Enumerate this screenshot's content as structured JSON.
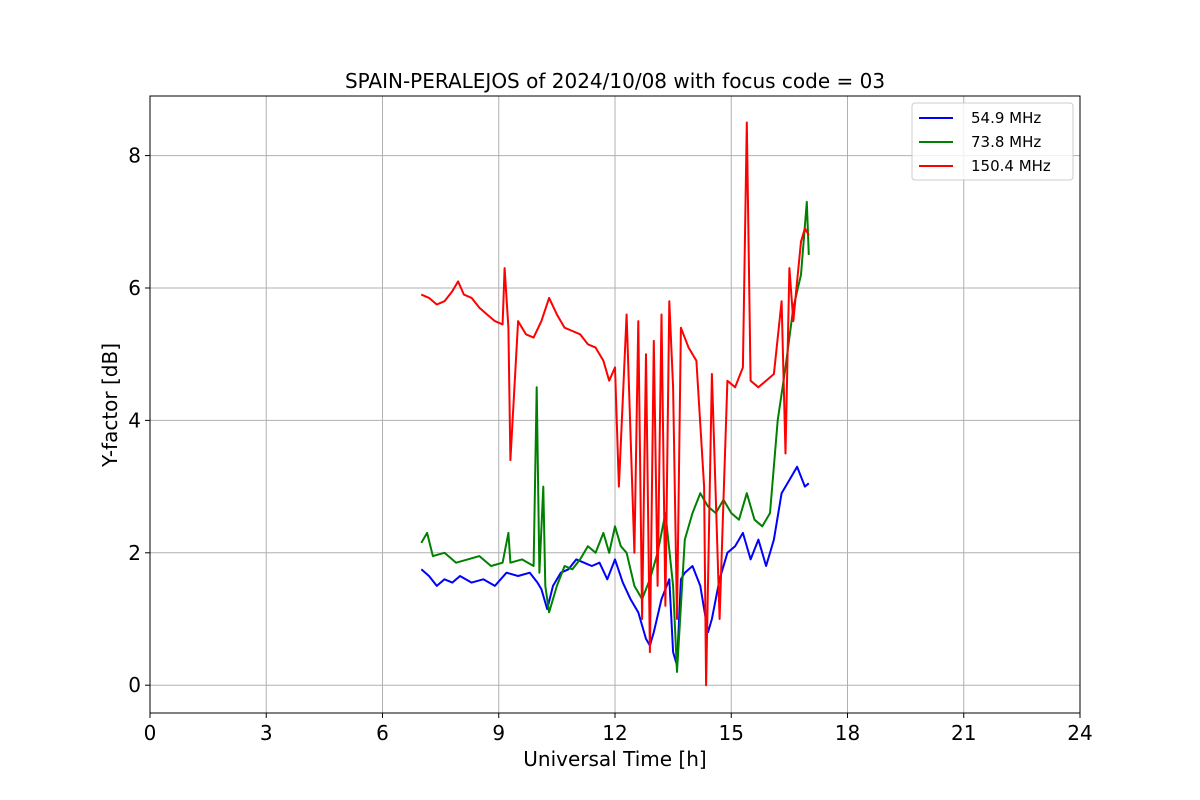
{
  "chart_data": {
    "type": "line",
    "title": "SPAIN-PERALEJOS of 2024/10/08 with focus code = 03",
    "xlabel": "Universal Time [h]",
    "ylabel": "Y-factor [dB]",
    "xlim": [
      0,
      24
    ],
    "ylim": [
      -0.42,
      8.9
    ],
    "xticks": [
      0,
      3,
      6,
      9,
      12,
      15,
      18,
      21,
      24
    ],
    "yticks": [
      0,
      2,
      4,
      6,
      8
    ],
    "xtick_labels": [
      "0",
      "3",
      "6",
      "9",
      "12",
      "15",
      "18",
      "21",
      "24"
    ],
    "ytick_labels": [
      "0",
      "2",
      "4",
      "6",
      "8"
    ],
    "grid": true,
    "legend_position": "top-right",
    "series": [
      {
        "name": "54.9 MHz",
        "color": "#0000ff",
        "x": [
          7.0,
          7.2,
          7.4,
          7.6,
          7.8,
          8.0,
          8.3,
          8.6,
          8.9,
          9.2,
          9.5,
          9.8,
          10.0,
          10.1,
          10.25,
          10.4,
          10.6,
          10.8,
          11.0,
          11.2,
          11.4,
          11.6,
          11.8,
          12.0,
          12.2,
          12.4,
          12.6,
          12.8,
          12.9,
          13.0,
          13.2,
          13.4,
          13.5,
          13.6,
          13.7,
          13.8,
          14.0,
          14.2,
          14.4,
          14.5,
          14.7,
          14.9,
          15.1,
          15.3,
          15.5,
          15.7,
          15.9,
          16.1,
          16.3,
          16.5,
          16.7,
          16.9,
          17.0
        ],
        "y": [
          1.75,
          1.65,
          1.5,
          1.6,
          1.55,
          1.65,
          1.55,
          1.6,
          1.5,
          1.7,
          1.65,
          1.7,
          1.55,
          1.45,
          1.15,
          1.5,
          1.7,
          1.75,
          1.9,
          1.85,
          1.8,
          1.85,
          1.6,
          1.9,
          1.55,
          1.3,
          1.1,
          0.7,
          0.6,
          0.8,
          1.3,
          1.6,
          0.5,
          0.3,
          1.6,
          1.7,
          1.8,
          1.5,
          0.8,
          1.0,
          1.6,
          2.0,
          2.1,
          2.3,
          1.9,
          2.2,
          1.8,
          2.2,
          2.9,
          3.1,
          3.3,
          3.0,
          3.05
        ]
      },
      {
        "name": "73.8 MHz",
        "color": "#008000",
        "x": [
          7.0,
          7.15,
          7.3,
          7.6,
          7.9,
          8.2,
          8.5,
          8.8,
          9.1,
          9.25,
          9.3,
          9.6,
          9.9,
          9.98,
          10.05,
          10.15,
          10.2,
          10.3,
          10.5,
          10.7,
          10.9,
          11.1,
          11.3,
          11.5,
          11.7,
          11.85,
          12.0,
          12.15,
          12.3,
          12.5,
          12.7,
          12.9,
          13.1,
          13.3,
          13.5,
          13.6,
          13.8,
          14.0,
          14.2,
          14.4,
          14.6,
          14.8,
          15.0,
          15.2,
          15.4,
          15.6,
          15.8,
          16.0,
          16.2,
          16.4,
          16.6,
          16.8,
          16.95,
          17.0
        ],
        "y": [
          2.15,
          2.3,
          1.95,
          2.0,
          1.85,
          1.9,
          1.95,
          1.8,
          1.85,
          2.3,
          1.85,
          1.9,
          1.8,
          4.5,
          1.7,
          3.0,
          1.5,
          1.1,
          1.5,
          1.8,
          1.75,
          1.9,
          2.1,
          2.0,
          2.3,
          2.0,
          2.4,
          2.1,
          2.0,
          1.5,
          1.3,
          1.6,
          2.0,
          2.6,
          1.5,
          0.2,
          2.2,
          2.6,
          2.9,
          2.7,
          2.6,
          2.8,
          2.6,
          2.5,
          2.9,
          2.5,
          2.4,
          2.6,
          4.0,
          4.8,
          5.7,
          6.2,
          7.3,
          6.5
        ]
      },
      {
        "name": "150.4 MHz",
        "color": "#ff0000",
        "x": [
          7.0,
          7.2,
          7.4,
          7.6,
          7.8,
          7.95,
          8.1,
          8.3,
          8.5,
          8.7,
          8.9,
          9.1,
          9.15,
          9.25,
          9.3,
          9.5,
          9.7,
          9.9,
          10.1,
          10.3,
          10.5,
          10.7,
          10.9,
          11.1,
          11.3,
          11.5,
          11.7,
          11.85,
          12.0,
          12.1,
          12.3,
          12.5,
          12.6,
          12.7,
          12.8,
          12.9,
          13.0,
          13.1,
          13.2,
          13.3,
          13.4,
          13.5,
          13.6,
          13.7,
          13.9,
          14.1,
          14.3,
          14.35,
          14.5,
          14.7,
          14.9,
          15.1,
          15.3,
          15.4,
          15.5,
          15.7,
          15.9,
          16.1,
          16.3,
          16.4,
          16.5,
          16.6,
          16.7,
          16.8,
          16.9,
          17.0
        ],
        "y": [
          5.9,
          5.85,
          5.75,
          5.8,
          5.95,
          6.1,
          5.9,
          5.85,
          5.7,
          5.6,
          5.5,
          5.45,
          6.3,
          5.4,
          3.4,
          5.5,
          5.3,
          5.25,
          5.5,
          5.85,
          5.6,
          5.4,
          5.35,
          5.3,
          5.15,
          5.1,
          4.9,
          4.6,
          4.8,
          3.0,
          5.6,
          2.0,
          5.5,
          1.0,
          5.0,
          0.5,
          5.2,
          1.5,
          5.6,
          1.2,
          5.8,
          4.5,
          1.0,
          5.4,
          5.1,
          4.9,
          3.0,
          0.0,
          4.7,
          1.0,
          4.6,
          4.5,
          4.8,
          8.5,
          4.6,
          4.5,
          4.6,
          4.7,
          5.8,
          3.5,
          6.3,
          5.5,
          6.1,
          6.7,
          6.9,
          6.8
        ]
      }
    ]
  }
}
